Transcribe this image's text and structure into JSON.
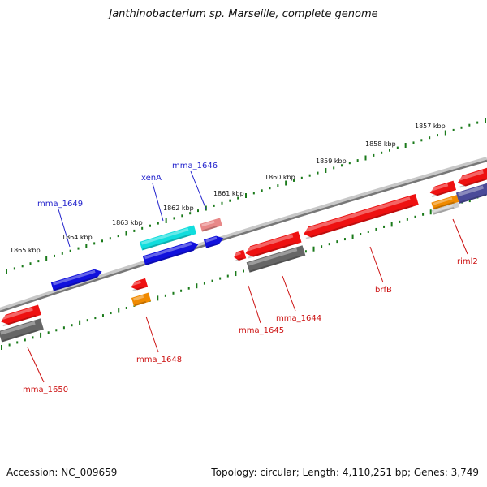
{
  "title": "Janthinobacterium sp. Marseille, complete genome",
  "footer": {
    "accession": "Accession: NC_009659",
    "topology": "Topology: circular; Length: 4,110,251 bp; Genes: 3,749"
  },
  "colors": {
    "backbone": "#8a8a8a",
    "tick_dot": "#1a7a1a",
    "forward_label": "#2222cc",
    "reverse_label": "#cc1111",
    "red": "#ee1111",
    "blue": "#1111dd",
    "cyan": "#11dddd",
    "pink": "#e88888",
    "orange": "#f08a00",
    "gray": "#666666",
    "purple": "#4a4a99"
  },
  "ticks": [
    {
      "label": "1857 kbp"
    },
    {
      "label": "1858 kbp"
    },
    {
      "label": "1859 kbp"
    },
    {
      "label": "1860 kbp"
    },
    {
      "label": "1861 kbp"
    },
    {
      "label": "1862 kbp"
    },
    {
      "label": "1863 kbp"
    },
    {
      "label": "1864 kbp"
    },
    {
      "label": "1865 kbp"
    }
  ],
  "genes": [
    {
      "label": "mma_1649",
      "strand": "+",
      "color": "blue"
    },
    {
      "label": "xenA",
      "strand": "+",
      "color": "cyan"
    },
    {
      "label": "mma_1646",
      "strand": "+",
      "color": "pink"
    },
    {
      "label": "mma_1648",
      "strand": "-",
      "color": "orange"
    },
    {
      "label": "mma_1645",
      "strand": "-",
      "color": "red"
    },
    {
      "label": "mma_1644",
      "strand": "-",
      "color": "gray"
    },
    {
      "label": "brfB",
      "strand": "-",
      "color": "red"
    },
    {
      "label": "riml2",
      "strand": "-",
      "color": "red"
    },
    {
      "label": "mma_1650",
      "strand": "-",
      "color": "gray"
    }
  ]
}
